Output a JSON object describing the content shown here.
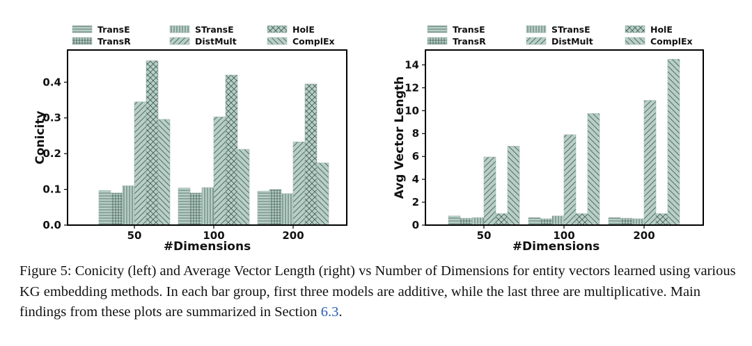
{
  "legend_labels": [
    "TransE",
    "TransR",
    "STransE",
    "DistMult",
    "HolE",
    "ComplEx"
  ],
  "colors": {
    "bar_fill": "#b7cfc7",
    "hatch": "#3f5a52",
    "axis": "#000000"
  },
  "chart_data": [
    {
      "type": "bar",
      "xlabel": "#Dimensions",
      "ylabel": "Conicity",
      "categories": [
        "50",
        "100",
        "200"
      ],
      "ylim": [
        0,
        0.49
      ],
      "yticks": [
        0.0,
        0.1,
        0.2,
        0.3,
        0.4
      ],
      "ytick_labels": [
        "0.0",
        "0.1",
        "0.2",
        "0.3",
        "0.4"
      ],
      "legend_position": "top",
      "series": [
        {
          "name": "TransE",
          "values": [
            0.097,
            0.104,
            0.095
          ]
        },
        {
          "name": "TransR",
          "values": [
            0.09,
            0.09,
            0.1
          ]
        },
        {
          "name": "STransE",
          "values": [
            0.11,
            0.105,
            0.088
          ]
        },
        {
          "name": "DistMult",
          "values": [
            0.345,
            0.303,
            0.233
          ]
        },
        {
          "name": "HolE",
          "values": [
            0.46,
            0.42,
            0.395
          ]
        },
        {
          "name": "ComplEx",
          "values": [
            0.296,
            0.212,
            0.174
          ]
        }
      ]
    },
    {
      "type": "bar",
      "xlabel": "#Dimensions",
      "ylabel": "Avg Vector Length",
      "categories": [
        "50",
        "100",
        "200"
      ],
      "ylim": [
        0,
        15.3
      ],
      "yticks": [
        0,
        2,
        4,
        6,
        8,
        10,
        12,
        14
      ],
      "ytick_labels": [
        "0",
        "2",
        "4",
        "6",
        "8",
        "10",
        "12",
        "14"
      ],
      "legend_position": "top",
      "series": [
        {
          "name": "TransE",
          "values": [
            0.8,
            0.65,
            0.65
          ]
        },
        {
          "name": "TransR",
          "values": [
            0.6,
            0.55,
            0.6
          ]
        },
        {
          "name": "STransE",
          "values": [
            0.65,
            0.8,
            0.55
          ]
        },
        {
          "name": "DistMult",
          "values": [
            5.95,
            7.9,
            10.9
          ]
        },
        {
          "name": "HolE",
          "values": [
            1.0,
            1.0,
            1.0
          ]
        },
        {
          "name": "ComplEx",
          "values": [
            6.9,
            9.75,
            14.5
          ]
        }
      ]
    }
  ],
  "caption": {
    "text": "Figure 5: Conicity (left) and Average Vector Length (right) vs Number of Dimensions for entity vectors learned using various KG embedding methods. In each bar group, first three models are additive, while the last three are multiplicative. Main findings from these plots are summarized in Section ",
    "ref": "6.3",
    "end": "."
  }
}
